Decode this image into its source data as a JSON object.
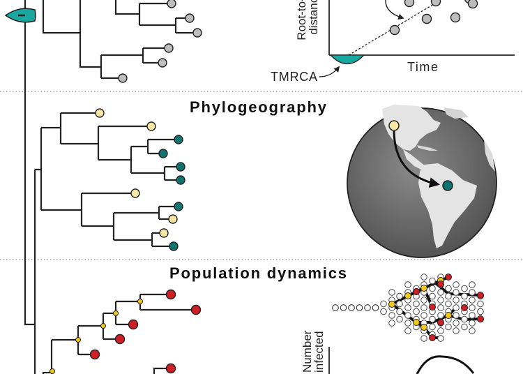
{
  "sections": {
    "molecular_clock": {
      "y_axis_label_line1": "Root-to-tip",
      "y_axis_label_line2": "distance",
      "x_axis_label": "Time",
      "annotation": "TMRCA"
    },
    "phylogeography": {
      "title": "Phylogeography"
    },
    "population_dynamics": {
      "title": "Population dynamics",
      "y_axis_label_line1": "Number",
      "y_axis_label_line2": "infected"
    }
  },
  "colors": {
    "branch": "#222222",
    "grey_tip": "#bdbdbd",
    "teal": "#0f7370",
    "teal_bright": "#1aa7a0",
    "pale_yellow": "#f8e7a4",
    "yellow": "#f2c81a",
    "red": "#cc1f26",
    "globe": "#6c6c6c",
    "land": "#e6e6e6"
  }
}
